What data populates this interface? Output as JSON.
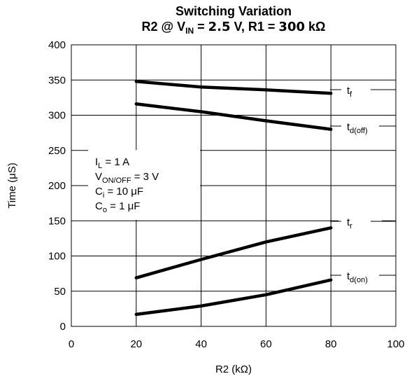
{
  "chart_data": {
    "type": "line",
    "title": "Switching Variation",
    "subtitle": {
      "prefix": "R2 @ V",
      "prefix_sub": "IN",
      "mid": " = ",
      "vin_value": "2.5",
      "mid2": " V, R1 = ",
      "r1_value": "300",
      "suffix": " kΩ"
    },
    "xlabel": "R2 (kΩ)",
    "ylabel": "Time  (μS)",
    "xlim": [
      0,
      100
    ],
    "ylim": [
      0,
      400
    ],
    "x_ticks": [
      0,
      20,
      40,
      60,
      80,
      100
    ],
    "y_ticks": [
      0,
      50,
      100,
      150,
      200,
      250,
      300,
      350,
      400
    ],
    "grid": true,
    "series": [
      {
        "name": "tf",
        "label_main": "t",
        "label_sub": "f",
        "x": [
          20,
          40,
          60,
          80
        ],
        "y": [
          348,
          340,
          336,
          331
        ]
      },
      {
        "name": "td(off)",
        "label_main": "t",
        "label_sub": "d(off)",
        "x": [
          20,
          40,
          60,
          80
        ],
        "y": [
          316,
          305,
          292,
          280
        ]
      },
      {
        "name": "tr",
        "label_main": "t",
        "label_sub": "r",
        "x": [
          20,
          40,
          60,
          80
        ],
        "y": [
          69,
          95,
          120,
          140
        ]
      },
      {
        "name": "td(on)",
        "label_main": "t",
        "label_sub": "d(on)",
        "x": [
          20,
          40,
          60,
          80
        ],
        "y": [
          17,
          29,
          45,
          66
        ]
      }
    ],
    "conditions": [
      {
        "main": "I",
        "sub": "L",
        "rest": " = 1 A"
      },
      {
        "main": "V",
        "sub": "ON/OFF",
        "rest": " = 3 V"
      },
      {
        "main": "C",
        "sub": "i",
        "rest": " = 10 μF"
      },
      {
        "main": "C",
        "sub": "o",
        "rest": " = 1 μF"
      }
    ]
  }
}
